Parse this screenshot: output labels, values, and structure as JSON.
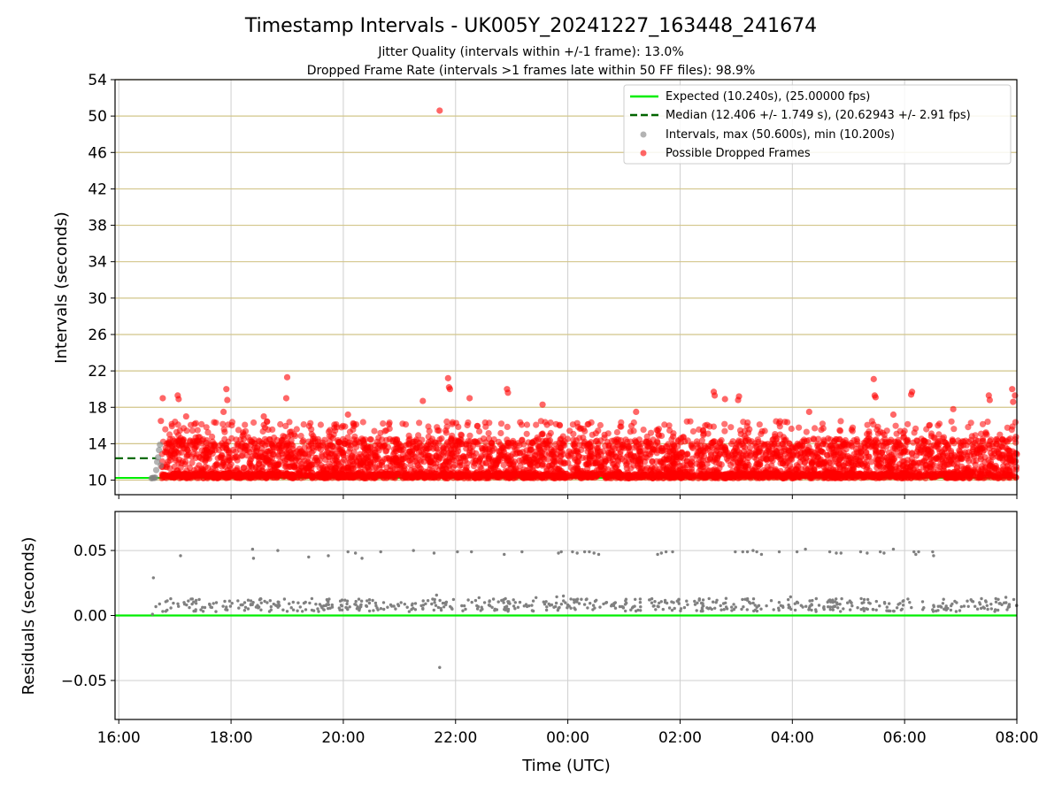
{
  "chart_data": [
    {
      "type": "scatter",
      "title": "Timestamp Intervals - UK005Y_20241227_163448_241674",
      "subtitle_lines": [
        "Jitter Quality (intervals within +/-1 frame): 13.0%",
        "Dropped Frame Rate (intervals >1 frames late within 50 FF files): 98.9%"
      ],
      "ylabel": "Intervals (seconds)",
      "xlabel": "",
      "x_range": [
        "2024-12-27 15:56",
        "2024-12-28 08:00"
      ],
      "ylim": [
        8.4,
        54
      ],
      "yticks": [
        10,
        14,
        18,
        22,
        26,
        30,
        34,
        38,
        42,
        46,
        50,
        54
      ],
      "xtick_labels": [
        "16:00",
        "18:00",
        "20:00",
        "22:00",
        "00:00",
        "02:00",
        "04:00",
        "06:00",
        "08:00"
      ],
      "grid": "horizontal lines dark khaki (#bdb76b), vertical lines light grey",
      "legend_position": "top-right",
      "legend": [
        {
          "label": "Expected (10.240s), (25.00000 fps)",
          "style": "solid-line",
          "color": "#00ee00"
        },
        {
          "label": "Median (12.406 +/- 1.749 s), (20.62943 +/- 2.91 fps)",
          "style": "dashed-line",
          "color": "#006400"
        },
        {
          "label": "Intervals, max (50.600s), min (10.200s)",
          "style": "marker",
          "color": "#808080"
        },
        {
          "label": "Possible Dropped Frames",
          "style": "marker",
          "color": "#ff0000"
        }
      ],
      "expected_interval": 10.24,
      "median_interval": 12.406,
      "series": [
        {
          "name": "Intervals, max (50.600s), min (10.200s)",
          "color": "#808080",
          "points": [
            [
              "2024-12-27 16:35",
              10.2
            ],
            [
              "2024-12-27 16:36",
              10.24
            ],
            [
              "2024-12-27 16:37",
              10.24
            ],
            [
              "2024-12-27 16:38",
              10.25
            ],
            [
              "2024-12-27 16:39",
              10.28
            ],
            [
              "2024-12-27 16:40",
              11.1
            ],
            [
              "2024-12-27 16:41",
              12.0
            ],
            [
              "2024-12-27 16:42",
              12.5
            ],
            [
              "2024-12-27 16:43",
              13.3
            ],
            [
              "2024-12-27 16:44",
              13.9
            ],
            [
              "2024-12-27 16:45",
              11.6
            ]
          ]
        },
        {
          "name": "Possible Dropped Frames",
          "color": "#ff0000",
          "density": "dense band of points 10.2–16 s across the whole night",
          "points": [
            [
              "2024-12-27 16:47",
              19.0
            ],
            [
              "2024-12-27 16:45",
              16.5
            ],
            [
              "2024-12-27 17:03",
              19.3
            ],
            [
              "2024-12-27 17:04",
              18.9
            ],
            [
              "2024-12-27 17:12",
              17.0
            ],
            [
              "2024-12-27 17:55",
              20.0
            ],
            [
              "2024-12-27 17:56",
              18.8
            ],
            [
              "2024-12-27 17:52",
              17.5
            ],
            [
              "2024-12-27 19:00",
              21.3
            ],
            [
              "2024-12-27 18:59",
              19.0
            ],
            [
              "2024-12-27 18:35",
              17.0
            ],
            [
              "2024-12-27 20:05",
              17.2
            ],
            [
              "2024-12-27 21:25",
              18.7
            ],
            [
              "2024-12-27 21:43",
              50.6
            ],
            [
              "2024-12-27 21:52",
              21.2
            ],
            [
              "2024-12-27 21:53",
              20.2
            ],
            [
              "2024-12-27 21:54",
              20.0
            ],
            [
              "2024-12-27 22:15",
              19.0
            ],
            [
              "2024-12-27 22:55",
              20.0
            ],
            [
              "2024-12-27 22:56",
              19.6
            ],
            [
              "2024-12-27 23:33",
              18.3
            ],
            [
              "2024-12-28 01:13",
              17.5
            ],
            [
              "2024-12-28 02:36",
              19.7
            ],
            [
              "2024-12-28 02:37",
              19.3
            ],
            [
              "2024-12-28 02:48",
              18.9
            ],
            [
              "2024-12-28 03:03",
              19.2
            ],
            [
              "2024-12-28 03:02",
              18.8
            ],
            [
              "2024-12-28 04:18",
              17.5
            ],
            [
              "2024-12-28 05:27",
              21.1
            ],
            [
              "2024-12-28 05:28",
              19.3
            ],
            [
              "2024-12-28 05:29",
              19.1
            ],
            [
              "2024-12-28 05:48",
              17.2
            ],
            [
              "2024-12-28 06:08",
              19.7
            ],
            [
              "2024-12-28 06:07",
              19.4
            ],
            [
              "2024-12-28 06:52",
              17.8
            ],
            [
              "2024-12-28 07:30",
              19.3
            ],
            [
              "2024-12-28 07:31",
              18.8
            ],
            [
              "2024-12-28 07:55",
              20.0
            ],
            [
              "2024-12-28 07:58",
              19.3
            ],
            [
              "2024-12-28 07:56",
              18.6
            ]
          ]
        }
      ]
    },
    {
      "type": "scatter",
      "title": "",
      "xlabel": "Time (UTC)",
      "ylabel": "Residuals (seconds)",
      "x_range": [
        "2024-12-27 15:56",
        "2024-12-28 08:00"
      ],
      "ylim": [
        -0.08,
        0.08
      ],
      "yticks": [
        -0.05,
        0.0,
        0.05
      ],
      "ytick_labels": [
        "−0.05",
        "0.00",
        "0.05"
      ],
      "xtick_labels": [
        "16:00",
        "18:00",
        "20:00",
        "22:00",
        "00:00",
        "02:00",
        "04:00",
        "06:00",
        "08:00"
      ],
      "grid": "light grey both directions",
      "zero_line_color": "#00ee00",
      "series": [
        {
          "name": "",
          "color": "#808080",
          "density": "band of points about 0.003–0.015 s from 16:38 to 08:00",
          "points": [
            [
              "2024-12-27 16:37",
              0.029
            ],
            [
              "2024-12-27 16:36",
              0.001
            ],
            [
              "2024-12-27 17:06",
              0.046
            ],
            [
              "2024-12-27 18:23",
              0.051
            ],
            [
              "2024-12-27 18:24",
              0.044
            ],
            [
              "2024-12-27 18:50",
              0.05
            ],
            [
              "2024-12-27 19:23",
              0.045
            ],
            [
              "2024-12-27 19:44",
              0.046
            ],
            [
              "2024-12-27 20:05",
              0.049
            ],
            [
              "2024-12-27 20:13",
              0.048
            ],
            [
              "2024-12-27 20:20",
              0.044
            ],
            [
              "2024-12-27 20:40",
              0.049
            ],
            [
              "2024-12-27 21:15",
              0.05
            ],
            [
              "2024-12-27 21:37",
              0.048
            ],
            [
              "2024-12-27 21:43",
              -0.04
            ],
            [
              "2024-12-27 22:02",
              0.049
            ],
            [
              "2024-12-27 22:17",
              0.049
            ],
            [
              "2024-12-27 22:52",
              0.047
            ],
            [
              "2024-12-27 23:11",
              0.049
            ],
            [
              "2024-12-27 23:50",
              0.048
            ],
            [
              "2024-12-27 23:53",
              0.049
            ],
            [
              "2024-12-28 00:05",
              0.049
            ],
            [
              "2024-12-28 00:10",
              0.048
            ],
            [
              "2024-12-28 00:18",
              0.049
            ],
            [
              "2024-12-28 00:23",
              0.049
            ],
            [
              "2024-12-28 00:28",
              0.048
            ],
            [
              "2024-12-28 00:33",
              0.047
            ],
            [
              "2024-12-28 01:36",
              0.047
            ],
            [
              "2024-12-28 01:40",
              0.048
            ],
            [
              "2024-12-28 01:45",
              0.049
            ],
            [
              "2024-12-28 01:52",
              0.049
            ],
            [
              "2024-12-28 02:59",
              0.049
            ],
            [
              "2024-12-28 03:07",
              0.049
            ],
            [
              "2024-12-28 03:12",
              0.049
            ],
            [
              "2024-12-28 03:18",
              0.05
            ],
            [
              "2024-12-28 03:22",
              0.049
            ],
            [
              "2024-12-28 03:27",
              0.047
            ],
            [
              "2024-12-28 03:46",
              0.049
            ],
            [
              "2024-12-28 04:05",
              0.049
            ],
            [
              "2024-12-28 04:14",
              0.051
            ],
            [
              "2024-12-28 04:40",
              0.049
            ],
            [
              "2024-12-28 04:47",
              0.048
            ],
            [
              "2024-12-28 04:52",
              0.048
            ],
            [
              "2024-12-28 05:13",
              0.049
            ],
            [
              "2024-12-28 05:20",
              0.048
            ],
            [
              "2024-12-28 05:34",
              0.049
            ],
            [
              "2024-12-28 05:38",
              0.048
            ],
            [
              "2024-12-28 05:48",
              0.051
            ],
            [
              "2024-12-28 06:10",
              0.049
            ],
            [
              "2024-12-28 06:12",
              0.047
            ],
            [
              "2024-12-28 06:15",
              0.049
            ],
            [
              "2024-12-28 06:30",
              0.049
            ],
            [
              "2024-12-28 06:31",
              0.046
            ]
          ]
        }
      ]
    }
  ]
}
